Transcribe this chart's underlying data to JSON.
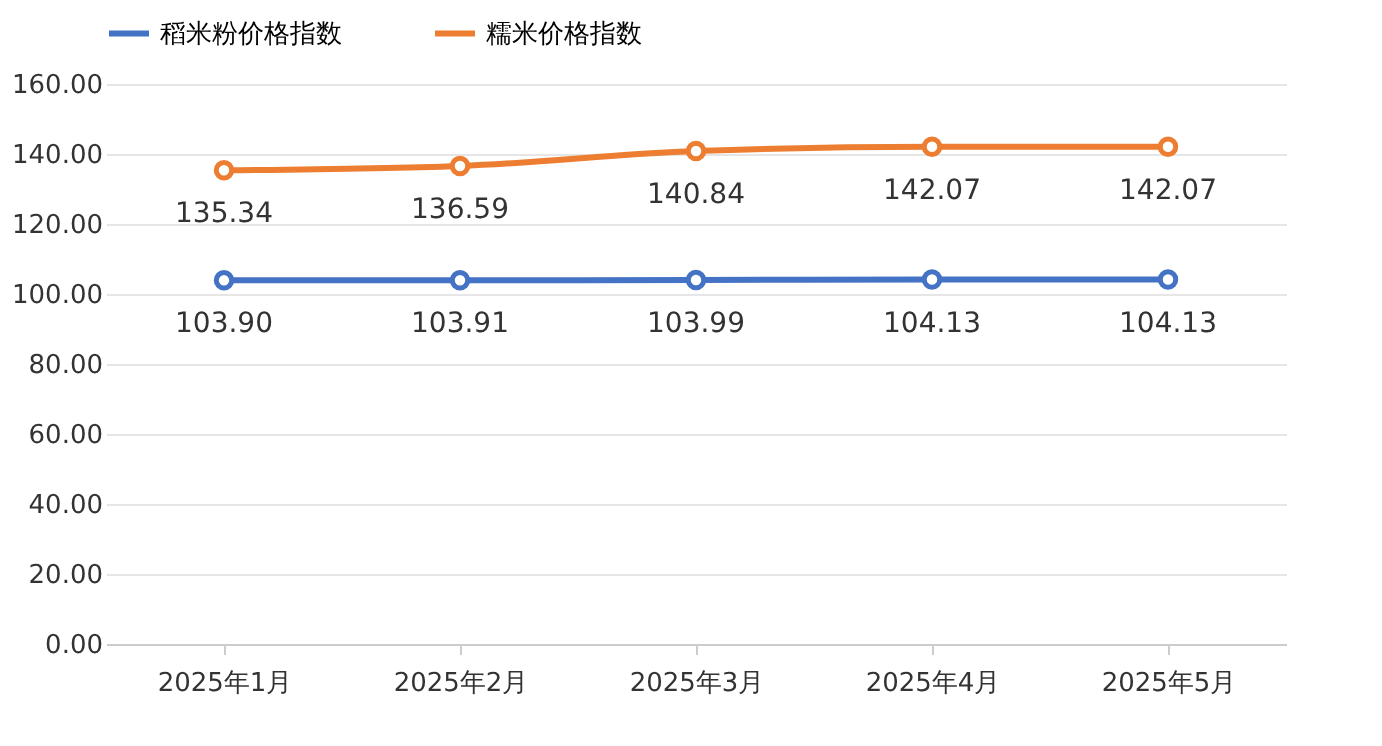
{
  "chart_data": {
    "type": "line",
    "categories": [
      "2025年1月",
      "2025年2月",
      "2025年3月",
      "2025年4月",
      "2025年5月"
    ],
    "series": [
      {
        "name": "稻米粉价格指数",
        "color": "#4472c4",
        "values": [
          103.9,
          103.91,
          103.99,
          104.13,
          104.13
        ],
        "value_labels": [
          "103.90",
          "103.91",
          "103.99",
          "104.13",
          "104.13"
        ]
      },
      {
        "name": "糯米价格指数",
        "color": "#ed7d31",
        "values": [
          135.34,
          136.59,
          140.84,
          142.07,
          142.07
        ],
        "value_labels": [
          "135.34",
          "136.59",
          "140.84",
          "142.07",
          "142.07"
        ]
      }
    ],
    "ylim": [
      0,
      160
    ],
    "yticks": [
      {
        "value": 0,
        "label": "0.00"
      },
      {
        "value": 20,
        "label": "20.00"
      },
      {
        "value": 40,
        "label": "40.00"
      },
      {
        "value": 60,
        "label": "60.00"
      },
      {
        "value": 80,
        "label": "80.00"
      },
      {
        "value": 100,
        "label": "100.00"
      },
      {
        "value": 120,
        "label": "120.00"
      },
      {
        "value": 140,
        "label": "140.00"
      },
      {
        "value": 160,
        "label": "160.00"
      }
    ],
    "grid": "y",
    "legend": "top",
    "marker": "circle",
    "line_style": "solid"
  }
}
